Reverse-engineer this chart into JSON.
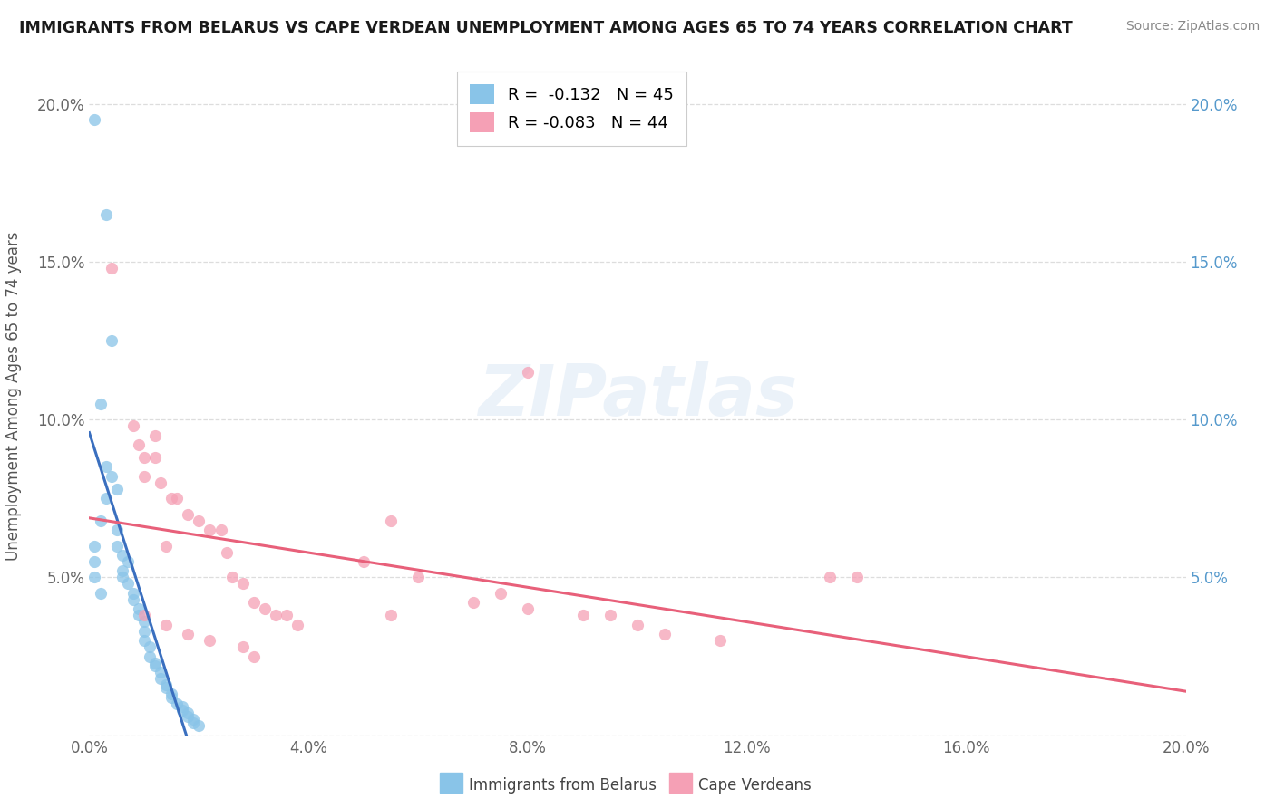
{
  "title": "IMMIGRANTS FROM BELARUS VS CAPE VERDEAN UNEMPLOYMENT AMONG AGES 65 TO 74 YEARS CORRELATION CHART",
  "source": "Source: ZipAtlas.com",
  "ylabel": "Unemployment Among Ages 65 to 74 years",
  "xmin": 0.0,
  "xmax": 0.2,
  "ymin": 0.0,
  "ymax": 0.215,
  "yticks": [
    0.0,
    0.05,
    0.1,
    0.15,
    0.2
  ],
  "ytick_labels_left": [
    "",
    "5.0%",
    "10.0%",
    "15.0%",
    "20.0%"
  ],
  "ytick_labels_right": [
    "",
    "5.0%",
    "10.0%",
    "15.0%",
    "20.0%"
  ],
  "xticks": [
    0.0,
    0.04,
    0.08,
    0.12,
    0.16,
    0.2
  ],
  "xtick_labels": [
    "0.0%",
    "4.0%",
    "8.0%",
    "12.0%",
    "16.0%",
    "20.0%"
  ],
  "legend_r1": "R =  -0.132",
  "legend_n1": "N = 45",
  "legend_r2": "R = -0.083",
  "legend_n2": "N = 44",
  "color_belarus": "#89c4e8",
  "color_capeverde": "#f5a0b5",
  "color_trend_belarus": "#3a6fbf",
  "color_trend_capeverde": "#e8607a",
  "color_trend_dashed": "#aabbd0",
  "watermark_text": "ZIPatlas",
  "legend_label1": "Immigrants from Belarus",
  "legend_label2": "Cape Verdeans",
  "belarus_points": [
    [
      0.001,
      0.195
    ],
    [
      0.003,
      0.165
    ],
    [
      0.004,
      0.125
    ],
    [
      0.002,
      0.105
    ],
    [
      0.003,
      0.085
    ],
    [
      0.004,
      0.082
    ],
    [
      0.005,
      0.078
    ],
    [
      0.003,
      0.075
    ],
    [
      0.002,
      0.068
    ],
    [
      0.005,
      0.065
    ],
    [
      0.005,
      0.06
    ],
    [
      0.006,
      0.057
    ],
    [
      0.007,
      0.055
    ],
    [
      0.006,
      0.052
    ],
    [
      0.006,
      0.05
    ],
    [
      0.007,
      0.048
    ],
    [
      0.008,
      0.045
    ],
    [
      0.008,
      0.043
    ],
    [
      0.009,
      0.04
    ],
    [
      0.009,
      0.038
    ],
    [
      0.01,
      0.036
    ],
    [
      0.01,
      0.033
    ],
    [
      0.01,
      0.03
    ],
    [
      0.011,
      0.028
    ],
    [
      0.011,
      0.025
    ],
    [
      0.012,
      0.023
    ],
    [
      0.012,
      0.022
    ],
    [
      0.013,
      0.02
    ],
    [
      0.013,
      0.018
    ],
    [
      0.014,
      0.016
    ],
    [
      0.014,
      0.015
    ],
    [
      0.015,
      0.013
    ],
    [
      0.015,
      0.012
    ],
    [
      0.016,
      0.01
    ],
    [
      0.017,
      0.009
    ],
    [
      0.017,
      0.008
    ],
    [
      0.018,
      0.007
    ],
    [
      0.018,
      0.006
    ],
    [
      0.019,
      0.005
    ],
    [
      0.019,
      0.004
    ],
    [
      0.02,
      0.003
    ],
    [
      0.001,
      0.06
    ],
    [
      0.001,
      0.055
    ],
    [
      0.001,
      0.05
    ],
    [
      0.002,
      0.045
    ]
  ],
  "capeverde_points": [
    [
      0.004,
      0.148
    ],
    [
      0.008,
      0.098
    ],
    [
      0.009,
      0.092
    ],
    [
      0.01,
      0.088
    ],
    [
      0.01,
      0.082
    ],
    [
      0.012,
      0.095
    ],
    [
      0.012,
      0.088
    ],
    [
      0.013,
      0.08
    ],
    [
      0.015,
      0.075
    ],
    [
      0.016,
      0.075
    ],
    [
      0.018,
      0.07
    ],
    [
      0.02,
      0.068
    ],
    [
      0.022,
      0.065
    ],
    [
      0.024,
      0.065
    ],
    [
      0.014,
      0.06
    ],
    [
      0.025,
      0.058
    ],
    [
      0.026,
      0.05
    ],
    [
      0.028,
      0.048
    ],
    [
      0.03,
      0.042
    ],
    [
      0.032,
      0.04
    ],
    [
      0.034,
      0.038
    ],
    [
      0.036,
      0.038
    ],
    [
      0.038,
      0.035
    ],
    [
      0.01,
      0.038
    ],
    [
      0.014,
      0.035
    ],
    [
      0.018,
      0.032
    ],
    [
      0.022,
      0.03
    ],
    [
      0.028,
      0.028
    ],
    [
      0.03,
      0.025
    ],
    [
      0.05,
      0.055
    ],
    [
      0.055,
      0.068
    ],
    [
      0.055,
      0.038
    ],
    [
      0.06,
      0.05
    ],
    [
      0.075,
      0.045
    ],
    [
      0.07,
      0.042
    ],
    [
      0.08,
      0.04
    ],
    [
      0.09,
      0.038
    ],
    [
      0.095,
      0.038
    ],
    [
      0.1,
      0.035
    ],
    [
      0.105,
      0.032
    ],
    [
      0.115,
      0.03
    ],
    [
      0.08,
      0.115
    ],
    [
      0.135,
      0.05
    ],
    [
      0.14,
      0.05
    ]
  ]
}
